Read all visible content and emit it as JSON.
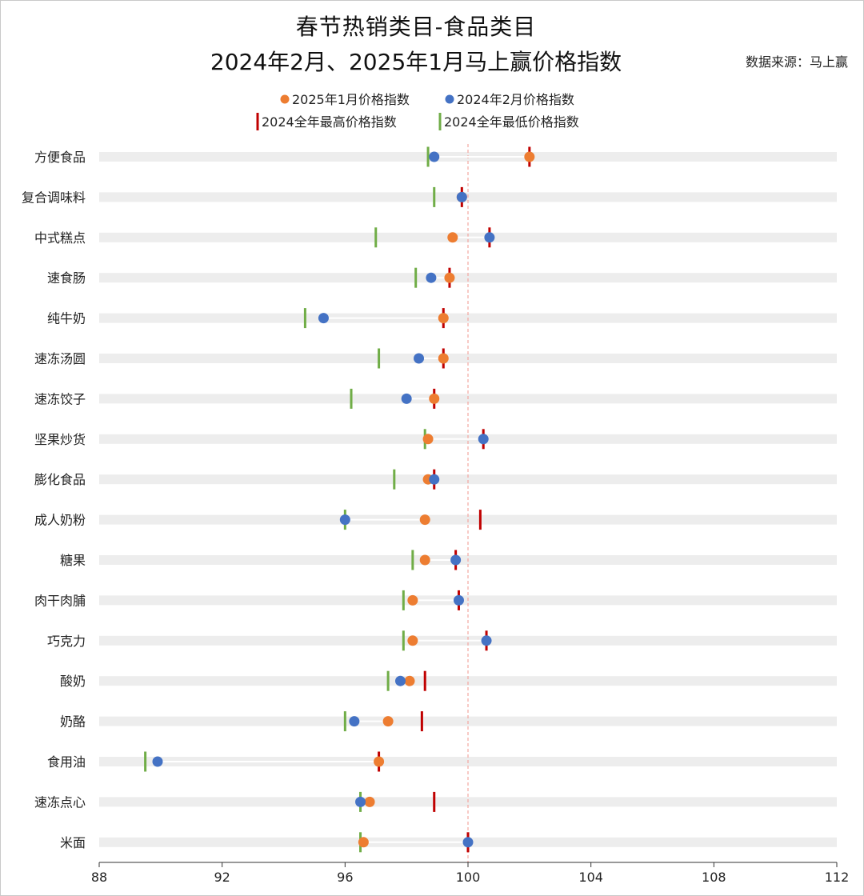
{
  "title_line1": "春节热销类目-食品类目",
  "title_line2": "2024年2月、2025年1月马上赢价格指数",
  "source": "数据来源：马上赢",
  "colors": {
    "orange": "#ED7D31",
    "blue": "#4472C4",
    "red": "#C00000",
    "green": "#70AD47",
    "track": "#EDEDED",
    "reference": "#F4A6A0"
  },
  "chart_data": {
    "type": "scatter",
    "xlim": [
      88,
      112
    ],
    "x_ticks": [
      88,
      92,
      96,
      100,
      104,
      108,
      112
    ],
    "reference_line": 100,
    "legend_placement": "top-center",
    "legend": [
      {
        "label": "2025年1月价格指数",
        "marker": "dot",
        "color": "#ED7D31"
      },
      {
        "label": "2024年2月价格指数",
        "marker": "dot",
        "color": "#4472C4"
      },
      {
        "label": "2024全年最高价格指数",
        "marker": "bar",
        "color": "#C00000"
      },
      {
        "label": "2024全年最低价格指数",
        "marker": "bar",
        "color": "#70AD47"
      }
    ],
    "categories": [
      "方便食品",
      "复合调味料",
      "中式糕点",
      "速食肠",
      "纯牛奶",
      "速冻汤圆",
      "速冻饺子",
      "坚果炒货",
      "膨化食品",
      "成人奶粉",
      "糖果",
      "肉干肉脯",
      "巧克力",
      "酸奶",
      "奶酪",
      "食用油",
      "速冻点心",
      "米面"
    ],
    "series": [
      {
        "name": "2025年1月价格指数",
        "values": [
          102.0,
          99.8,
          99.5,
          99.4,
          99.2,
          99.2,
          98.9,
          98.7,
          98.7,
          98.6,
          98.6,
          98.2,
          98.2,
          98.1,
          97.4,
          97.1,
          96.8,
          96.6
        ]
      },
      {
        "name": "2024年2月价格指数",
        "values": [
          98.9,
          99.8,
          100.7,
          98.8,
          95.3,
          98.4,
          98.0,
          100.5,
          98.9,
          96.0,
          99.6,
          99.7,
          100.6,
          97.8,
          96.3,
          89.9,
          96.5,
          100.0
        ]
      },
      {
        "name": "2024全年最高价格指数",
        "values": [
          102.0,
          99.8,
          100.7,
          99.4,
          99.2,
          99.2,
          98.9,
          100.5,
          98.9,
          100.4,
          99.6,
          99.7,
          100.6,
          98.6,
          98.5,
          97.1,
          98.9,
          100.0
        ]
      },
      {
        "name": "2024全年最低价格指数",
        "values": [
          98.7,
          98.9,
          97.0,
          98.3,
          94.7,
          97.1,
          96.2,
          98.6,
          97.6,
          96.0,
          98.2,
          97.9,
          97.9,
          97.4,
          96.0,
          89.5,
          96.5,
          96.5
        ]
      }
    ]
  }
}
